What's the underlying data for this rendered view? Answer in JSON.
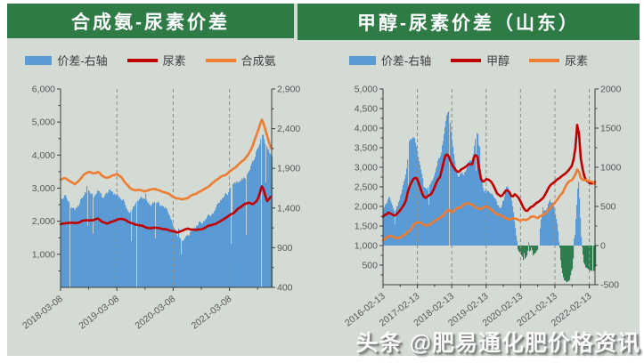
{
  "page": {
    "panel_bg": "#d4dad4",
    "header_bg": "#2e7b46",
    "watermark": "头条 @肥易通化肥价格资讯"
  },
  "charts": [
    {
      "title": "合成氨-尿素价差",
      "legend": [
        {
          "label": "价差-右轴",
          "marker": "bar",
          "color": "#5b9bd5"
        },
        {
          "label": "尿素",
          "marker": "line",
          "color": "#c00000"
        },
        {
          "label": "合成氨",
          "marker": "line",
          "color": "#ed7d31"
        }
      ],
      "chart_data": {
        "type": "combo",
        "x_start": "2018-03",
        "x_total_months": 45,
        "x_tick_labels": [
          "2018-03-08",
          "2019-03-08",
          "2020-03-08",
          "2021-03-08"
        ],
        "x_tick_indices": [
          0,
          12,
          24,
          36
        ],
        "gridline_indices": [
          12,
          24,
          36
        ],
        "axis_left": {
          "min": 0,
          "max": 6000,
          "minor_step": 500,
          "tick_values": [
            1000,
            2000,
            3000,
            4000,
            5000,
            6000
          ],
          "tick_labels": [
            "1,000",
            "2,000",
            "3,000",
            "4,000",
            "5,000",
            "6,000"
          ]
        },
        "axis_right": {
          "min": 400,
          "max": 2900,
          "minor_step": 250,
          "tick_values": [
            400,
            900,
            1400,
            1900,
            2400,
            2900
          ],
          "tick_labels": [
            "400",
            "900",
            "1,400",
            "1,900",
            "2,400",
            "2,900"
          ]
        },
        "series": [
          {
            "name": "价差-右轴",
            "type": "bar",
            "axis": "right",
            "color": "#5b9bd5",
            "neg_color": "#2f7d4f",
            "values": [
              1550,
              1600,
              1500,
              1450,
              1550,
              1650,
              1700,
              1600,
              1650,
              1500,
              1550,
              1600,
              1550,
              1500,
              1450,
              1400,
              1450,
              1500,
              1450,
              1400,
              1450,
              1400,
              1350,
              1300,
              1150,
              1050,
              1000,
              1100,
              1200,
              1250,
              1300,
              1350,
              1400,
              1450,
              1500,
              1550,
              1600,
              1650,
              1700,
              1750,
              1850,
              2000,
              2200,
              2450,
              2250,
              2100
            ]
          },
          {
            "name": "尿素",
            "type": "line",
            "axis": "left",
            "color": "#c00000",
            "values": [
              1900,
              1950,
              2000,
              1980,
              2000,
              2050,
              2030,
              2060,
              2100,
              2000,
              1960,
              2000,
              2080,
              2120,
              2080,
              2000,
              1950,
              1900,
              1850,
              1800,
              1840,
              1820,
              1790,
              1750,
              1700,
              1660,
              1700,
              1740,
              1700,
              1680,
              1720,
              1780,
              1850,
              1900,
              2000,
              2100,
              2200,
              2300,
              2400,
              2480,
              2550,
              2500,
              2620,
              3050,
              2550,
              2700
            ]
          },
          {
            "name": "合成氨",
            "type": "line",
            "axis": "left",
            "color": "#ed7d31",
            "values": [
              3250,
              3300,
              3200,
              3100,
              3250,
              3400,
              3500,
              3450,
              3500,
              3350,
              3300,
              3350,
              3400,
              3300,
              3100,
              2950,
              2900,
              2950,
              2900,
              2950,
              3000,
              2950,
              2900,
              2850,
              2750,
              2700,
              2650,
              2700,
              2800,
              2850,
              2950,
              3050,
              3150,
              3250,
              3350,
              3400,
              3500,
              3600,
              3700,
              3800,
              4000,
              4300,
              4700,
              5100,
              4600,
              4150
            ]
          }
        ]
      }
    },
    {
      "title": "甲醇-尿素价差（山东）",
      "legend": [
        {
          "label": "价差-右轴",
          "marker": "bar",
          "color": "#5b9bd5"
        },
        {
          "label": "甲醇",
          "marker": "line",
          "color": "#c00000"
        },
        {
          "label": "尿素",
          "marker": "line",
          "color": "#ed7d31"
        }
      ],
      "chart_data": {
        "type": "combo",
        "x_start": "2016-02",
        "x_total_months": 74,
        "x_tick_labels": [
          "2016-02-13",
          "2017-02-13",
          "2018-02-13",
          "2019-02-13",
          "2020-02-13",
          "2021-02-13",
          "2022-02-13"
        ],
        "x_tick_indices": [
          0,
          12,
          24,
          36,
          48,
          60,
          72
        ],
        "gridline_indices": [
          12,
          24,
          36,
          48,
          60,
          72
        ],
        "axis_left": {
          "min": 0,
          "max": 5000,
          "minor_step": 250,
          "tick_values": [
            500,
            1000,
            1500,
            2000,
            2500,
            3000,
            3500,
            4000,
            4500,
            5000
          ],
          "tick_labels": [
            "500",
            "1,000",
            "1,500",
            "2,000",
            "2,500",
            "3,000",
            "3,500",
            "4,000",
            "4,500",
            "5,000"
          ]
        },
        "axis_right": {
          "min": -500,
          "max": 2000,
          "minor_step": 250,
          "tick_values": [
            -500,
            0,
            500,
            1000,
            1500,
            2000
          ],
          "tick_labels": [
            "-500",
            "0",
            "500",
            "1000",
            "1500",
            "2000"
          ]
        },
        "series": [
          {
            "name": "价差-右轴",
            "type": "bar",
            "axis": "right",
            "color": "#5b9bd5",
            "neg_color": "#2f7d4f",
            "values": [
              450,
              500,
              550,
              500,
              450,
              550,
              650,
              750,
              900,
              1250,
              1300,
              1300,
              1150,
              950,
              700,
              650,
              700,
              750,
              900,
              1050,
              1100,
              1350,
              1550,
              1600,
              1250,
              1050,
              900,
              950,
              950,
              1000,
              1100,
              1050,
              1350,
              1400,
              900,
              700,
              700,
              700,
              700,
              600,
              500,
              450,
              550,
              700,
              650,
              450,
              150,
              -150,
              -220,
              -260,
              -200,
              -160,
              -200,
              -150,
              -80,
              250,
              350,
              450,
              550,
              500,
              400,
              150,
              -250,
              -400,
              -430,
              -350,
              -200,
              300,
              950,
              200,
              -150,
              -200,
              -250,
              -200,
              -150
            ]
          },
          {
            "name": "甲醇",
            "type": "line",
            "axis": "left",
            "color": "#c00000",
            "values": [
              1750,
              1800,
              1850,
              1800,
              1750,
              1800,
              1900,
              2000,
              2150,
              2500,
              2650,
              2750,
              2700,
              2500,
              2300,
              2250,
              2300,
              2350,
              2500,
              2700,
              2800,
              3100,
              3400,
              3300,
              3100,
              3000,
              2900,
              2950,
              3000,
              3050,
              3150,
              3100,
              3400,
              3300,
              2750,
              2650,
              2750,
              2700,
              2650,
              2500,
              2350,
              2300,
              2350,
              2450,
              2400,
              2250,
              2350,
              2300,
              2150,
              2000,
              1900,
              1950,
              2000,
              2050,
              2100,
              2150,
              2200,
              2350,
              2500,
              2550,
              2600,
              2650,
              2700,
              2750,
              2800,
              2900,
              3000,
              3300,
              4250,
              3200,
              2800,
              2650,
              2600,
              2600,
              2650
            ]
          },
          {
            "name": "尿素",
            "type": "line",
            "axis": "left",
            "color": "#ed7d31",
            "values": [
              1150,
              1200,
              1250,
              1250,
              1200,
              1150,
              1200,
              1250,
              1300,
              1350,
              1450,
              1550,
              1600,
              1620,
              1560,
              1520,
              1560,
              1600,
              1650,
              1700,
              1750,
              1800,
              1900,
              1950,
              1900,
              1950,
              2000,
              2000,
              2050,
              2100,
              2080,
              2040,
              2000,
              1960,
              1900,
              1950,
              2000,
              1950,
              1900,
              1850,
              1800,
              1800,
              1750,
              1700,
              1650,
              1700,
              1700,
              1700,
              1650,
              1700,
              1650,
              1700,
              1750,
              1750,
              1700,
              1750,
              1800,
              1850,
              1950,
              2050,
              2100,
              2200,
              2300,
              2400,
              2550,
              2650,
              2700,
              2800,
              3000,
              2750,
              2700,
              2700,
              2650,
              2650,
              2600
            ]
          }
        ]
      }
    }
  ]
}
